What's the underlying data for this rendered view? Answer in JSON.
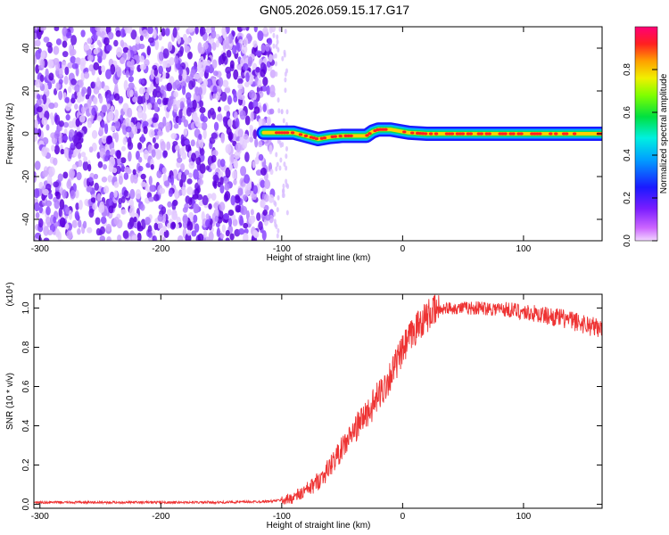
{
  "title": "GN05.2026.059.15.17.G17",
  "colors": {
    "scatter_purple": "#7a2bff",
    "scatter_light": "#c7a8ff",
    "snr_line": "#ee3333"
  },
  "chart_data": [
    {
      "type": "heatmap",
      "xlabel": "Height of straight line (km)",
      "ylabel": "Frequency (Hz)",
      "xlim": [
        -305,
        165
      ],
      "ylim": [
        -50,
        50
      ],
      "xticks": [
        -300,
        -200,
        -100,
        0,
        100
      ],
      "yticks": [
        -40,
        -20,
        0,
        20,
        40
      ],
      "noise_region_x": [
        -305,
        -95
      ],
      "colorbar": {
        "label": "Normalized spectral amplitude",
        "range": [
          0,
          1
        ],
        "ticks": [
          0.0,
          0.2,
          0.4,
          0.6,
          0.8
        ]
      },
      "ridge": {
        "x": [
          -115,
          -100,
          -90,
          -80,
          -70,
          -60,
          -50,
          -40,
          -30,
          -25,
          -20,
          -10,
          0,
          5,
          20,
          40,
          60,
          80,
          100,
          120,
          140,
          165
        ],
        "freq": [
          0.5,
          0.5,
          0.5,
          -1,
          -2.5,
          -1.5,
          -1,
          -1,
          -1,
          1,
          2,
          2,
          1,
          0.5,
          0,
          0,
          0,
          0,
          0,
          0,
          0,
          0
        ]
      }
    },
    {
      "type": "line",
      "xlabel": "Height of straight line (km)",
      "ylabel": "SNR (10 * v/v)",
      "y_multiplier": "(x10⁴)",
      "xlim": [
        -305,
        165
      ],
      "ylim": [
        -0.02,
        1.07
      ],
      "xticks": [
        -300,
        -200,
        -100,
        0,
        100
      ],
      "yticks": [
        0.0,
        0.2,
        0.4,
        0.6,
        0.8,
        1.0
      ],
      "series": [
        {
          "x": [
            -305,
            -250,
            -200,
            -150,
            -110,
            -95,
            -85,
            -75,
            -65,
            -55,
            -45,
            -35,
            -25,
            -15,
            -5,
            5,
            15,
            25,
            35,
            50,
            70,
            90,
            110,
            130,
            150,
            165
          ],
          "values": [
            0.01,
            0.01,
            0.01,
            0.01,
            0.015,
            0.025,
            0.05,
            0.09,
            0.15,
            0.24,
            0.33,
            0.42,
            0.5,
            0.6,
            0.72,
            0.84,
            0.93,
            0.98,
            1.0,
            1.0,
            1.0,
            0.99,
            0.97,
            0.95,
            0.92,
            0.89
          ]
        }
      ]
    }
  ]
}
